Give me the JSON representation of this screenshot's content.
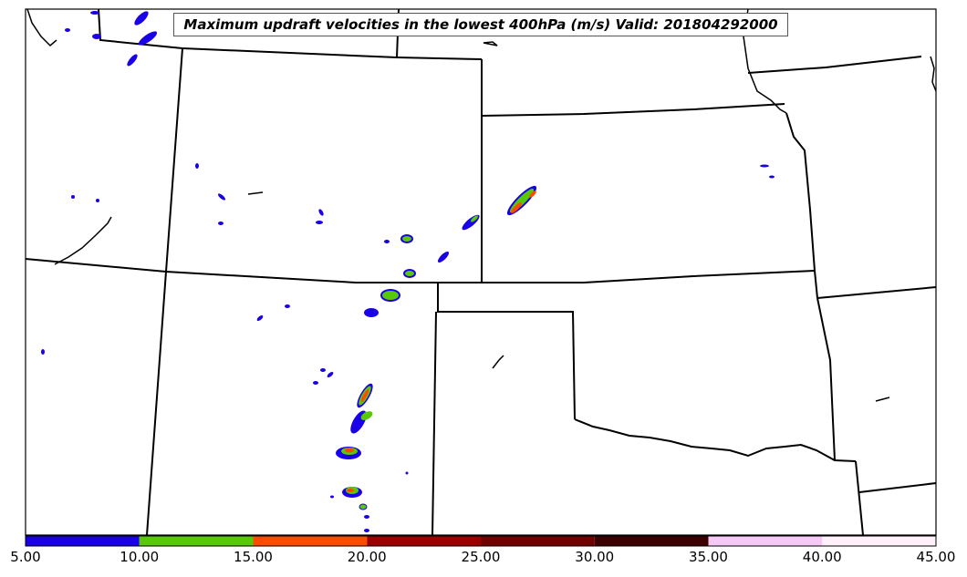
{
  "title": "Maximum updraft velocities in the lowest 400hPa (m/s) Valid: 201804292000",
  "colorbar": {
    "ticks": [
      "5.00",
      "10.00",
      "15.00",
      "20.00",
      "25.00",
      "30.00",
      "35.00",
      "40.00",
      "45.00"
    ],
    "colors": [
      "#1a00e6",
      "#5ac80a",
      "#ff4b00",
      "#9b0000",
      "#6e0000",
      "#3c0000",
      "#f5c8f5",
      "#fff0fa"
    ]
  }
}
